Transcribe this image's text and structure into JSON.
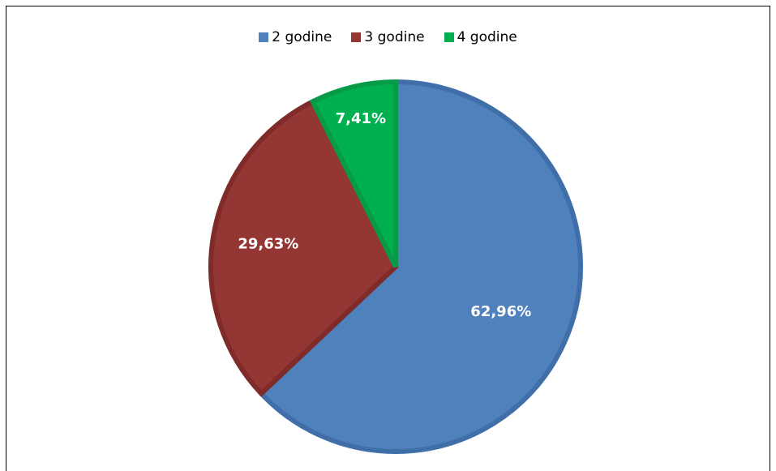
{
  "chart_data": {
    "type": "pie",
    "categories": [
      "2 godine",
      "3 godine",
      "4 godine"
    ],
    "values": [
      62.96,
      29.63,
      7.41
    ],
    "labels": [
      "62,96%",
      "29,63%",
      "7,41%"
    ],
    "colors": [
      "#4F81BD",
      "#943634",
      "#00B050"
    ],
    "edge_colors": [
      "#3F6EA8",
      "#7E2B29",
      "#079A47"
    ],
    "legend_position": "top",
    "title": ""
  }
}
